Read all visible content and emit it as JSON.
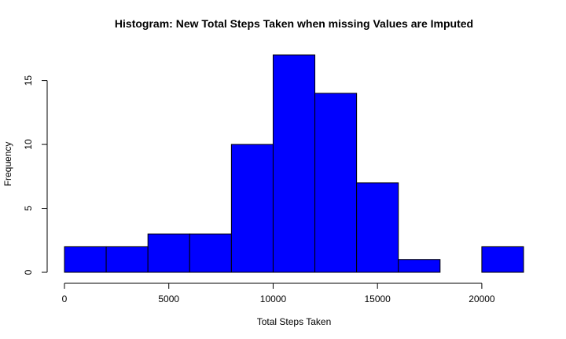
{
  "chart_data": {
    "type": "bar",
    "title": "Histogram: New Total Steps Taken when missing Values are Imputed",
    "xlabel": "Total Steps Taken",
    "ylabel": "Frequency",
    "bins": [
      {
        "from": 0,
        "to": 2000,
        "count": 2
      },
      {
        "from": 2000,
        "to": 4000,
        "count": 2
      },
      {
        "from": 4000,
        "to": 6000,
        "count": 3
      },
      {
        "from": 6000,
        "to": 8000,
        "count": 3
      },
      {
        "from": 8000,
        "to": 10000,
        "count": 10
      },
      {
        "from": 10000,
        "to": 12000,
        "count": 17
      },
      {
        "from": 12000,
        "to": 14000,
        "count": 14
      },
      {
        "from": 14000,
        "to": 16000,
        "count": 7
      },
      {
        "from": 16000,
        "to": 18000,
        "count": 1
      },
      {
        "from": 18000,
        "to": 20000,
        "count": 0
      },
      {
        "from": 20000,
        "to": 22000,
        "count": 2
      }
    ],
    "xlim": [
      0,
      22000
    ],
    "ylim": [
      0,
      17
    ],
    "xticks": [
      0,
      5000,
      10000,
      15000,
      20000
    ],
    "yticks": [
      0,
      5,
      10,
      15
    ],
    "bar_color": "#0000ff",
    "border_color": "#000000",
    "grid": false,
    "legend": "none"
  }
}
